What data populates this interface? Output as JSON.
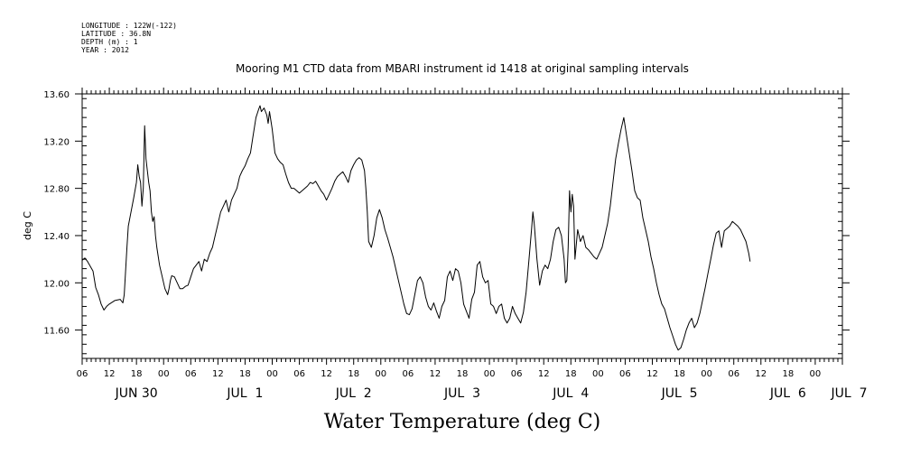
{
  "meta_lines": [
    "LONGITUDE : 122W(-122)",
    "LATITUDE : 36.8N",
    "DEPTH (m) : 1",
    "YEAR : 2012"
  ],
  "chart_data": {
    "type": "line",
    "title": "Mooring M1 CTD data from MBARI instrument id 1418 at original sampling intervals",
    "xlabel": "Water Temperature (deg C)",
    "ylabel": "deg C",
    "ylim": [
      11.36,
      13.6
    ],
    "y_ticks": [
      11.6,
      12.0,
      12.4,
      12.8,
      13.2,
      13.6
    ],
    "y_tick_labels": [
      "11.60",
      "12.00",
      "12.40",
      "12.80",
      "13.20",
      "13.60"
    ],
    "xlim_hours": [
      0,
      168
    ],
    "x_tick_labels": [
      "06",
      "12",
      "18",
      "00",
      "06",
      "12",
      "18",
      "00",
      "06",
      "12",
      "18",
      "00",
      "06",
      "12",
      "18",
      "00",
      "06",
      "12",
      "18",
      "00",
      "06",
      "12",
      "18",
      "00",
      "06",
      "12",
      "18",
      "00"
    ],
    "day_labels": [
      {
        "hour": 12,
        "label": "JUN 30"
      },
      {
        "hour": 36,
        "label": "JUL  1"
      },
      {
        "hour": 60,
        "label": "JUL  2"
      },
      {
        "hour": 84,
        "label": "JUL  3"
      },
      {
        "hour": 108,
        "label": "JUL  4"
      },
      {
        "hour": 132,
        "label": "JUL  5"
      },
      {
        "hour": 156,
        "label": "JUL  6"
      },
      {
        "hour": 169.5,
        "label": "JUL  7"
      }
    ],
    "series": [
      {
        "color": "#000000",
        "points": [
          [
            0.0,
            12.19
          ],
          [
            0.6,
            12.21
          ],
          [
            1.2,
            12.18
          ],
          [
            2.4,
            12.1
          ],
          [
            3.0,
            11.96
          ],
          [
            3.6,
            11.9
          ],
          [
            4.2,
            11.82
          ],
          [
            4.8,
            11.77
          ],
          [
            5.4,
            11.8
          ],
          [
            6.0,
            11.82
          ],
          [
            7.2,
            11.85
          ],
          [
            8.4,
            11.86
          ],
          [
            9.0,
            11.83
          ],
          [
            9.3,
            11.9
          ],
          [
            9.6,
            12.1
          ],
          [
            9.9,
            12.3
          ],
          [
            10.2,
            12.48
          ],
          [
            10.8,
            12.6
          ],
          [
            11.4,
            12.72
          ],
          [
            12.0,
            12.85
          ],
          [
            12.3,
            13.0
          ],
          [
            12.6,
            12.9
          ],
          [
            12.9,
            12.85
          ],
          [
            13.2,
            12.65
          ],
          [
            13.5,
            12.8
          ],
          [
            13.8,
            13.33
          ],
          [
            14.1,
            13.05
          ],
          [
            14.4,
            12.95
          ],
          [
            14.7,
            12.85
          ],
          [
            15.0,
            12.78
          ],
          [
            15.3,
            12.6
          ],
          [
            15.6,
            12.52
          ],
          [
            15.9,
            12.56
          ],
          [
            16.2,
            12.4
          ],
          [
            16.5,
            12.3
          ],
          [
            17.1,
            12.15
          ],
          [
            17.7,
            12.05
          ],
          [
            18.0,
            12.0
          ],
          [
            18.3,
            11.95
          ],
          [
            18.9,
            11.9
          ],
          [
            19.2,
            11.95
          ],
          [
            19.5,
            12.02
          ],
          [
            19.8,
            12.06
          ],
          [
            20.4,
            12.05
          ],
          [
            21.0,
            12.0
          ],
          [
            21.6,
            11.95
          ],
          [
            22.2,
            11.95
          ],
          [
            22.8,
            11.97
          ],
          [
            23.4,
            11.98
          ],
          [
            24.0,
            12.05
          ],
          [
            24.6,
            12.12
          ],
          [
            25.2,
            12.15
          ],
          [
            25.8,
            12.18
          ],
          [
            26.4,
            12.1
          ],
          [
            27.0,
            12.2
          ],
          [
            27.6,
            12.18
          ],
          [
            28.2,
            12.25
          ],
          [
            28.8,
            12.3
          ],
          [
            29.4,
            12.4
          ],
          [
            30.0,
            12.5
          ],
          [
            30.6,
            12.6
          ],
          [
            31.2,
            12.65
          ],
          [
            31.8,
            12.7
          ],
          [
            32.4,
            12.6
          ],
          [
            33.0,
            12.7
          ],
          [
            33.6,
            12.75
          ],
          [
            34.2,
            12.8
          ],
          [
            34.8,
            12.9
          ],
          [
            35.4,
            12.95
          ],
          [
            36.0,
            12.99
          ],
          [
            36.6,
            13.05
          ],
          [
            37.2,
            13.1
          ],
          [
            37.8,
            13.25
          ],
          [
            38.4,
            13.4
          ],
          [
            39.0,
            13.47
          ],
          [
            39.3,
            13.5
          ],
          [
            39.6,
            13.45
          ],
          [
            40.2,
            13.48
          ],
          [
            40.8,
            13.42
          ],
          [
            41.1,
            13.35
          ],
          [
            41.4,
            13.45
          ],
          [
            42.0,
            13.3
          ],
          [
            42.6,
            13.1
          ],
          [
            43.2,
            13.05
          ],
          [
            43.8,
            13.02
          ],
          [
            44.4,
            13.0
          ],
          [
            45.0,
            12.92
          ],
          [
            45.6,
            12.85
          ],
          [
            46.2,
            12.8
          ],
          [
            46.8,
            12.8
          ],
          [
            47.4,
            12.78
          ],
          [
            48.0,
            12.76
          ],
          [
            48.6,
            12.78
          ],
          [
            49.2,
            12.8
          ],
          [
            49.8,
            12.82
          ],
          [
            50.4,
            12.85
          ],
          [
            51.0,
            12.84
          ],
          [
            51.6,
            12.86
          ],
          [
            52.2,
            12.82
          ],
          [
            52.8,
            12.78
          ],
          [
            53.4,
            12.75
          ],
          [
            54.0,
            12.7
          ],
          [
            54.6,
            12.75
          ],
          [
            55.2,
            12.8
          ],
          [
            55.8,
            12.86
          ],
          [
            56.4,
            12.9
          ],
          [
            57.0,
            12.92
          ],
          [
            57.6,
            12.94
          ],
          [
            58.2,
            12.9
          ],
          [
            58.8,
            12.85
          ],
          [
            59.4,
            12.95
          ],
          [
            60.0,
            13.0
          ],
          [
            60.6,
            13.04
          ],
          [
            61.2,
            13.06
          ],
          [
            61.8,
            13.04
          ],
          [
            62.4,
            12.95
          ],
          [
            62.7,
            12.8
          ],
          [
            63.0,
            12.6
          ],
          [
            63.3,
            12.35
          ],
          [
            63.9,
            12.3
          ],
          [
            64.5,
            12.4
          ],
          [
            65.1,
            12.55
          ],
          [
            65.7,
            12.62
          ],
          [
            66.3,
            12.55
          ],
          [
            66.9,
            12.45
          ],
          [
            67.5,
            12.38
          ],
          [
            68.1,
            12.3
          ],
          [
            68.7,
            12.22
          ],
          [
            69.3,
            12.12
          ],
          [
            69.9,
            12.02
          ],
          [
            70.5,
            11.92
          ],
          [
            71.1,
            11.82
          ],
          [
            71.7,
            11.74
          ],
          [
            72.3,
            11.73
          ],
          [
            72.9,
            11.78
          ],
          [
            73.5,
            11.9
          ],
          [
            74.1,
            12.02
          ],
          [
            74.7,
            12.05
          ],
          [
            75.3,
            12.0
          ],
          [
            75.9,
            11.88
          ],
          [
            76.5,
            11.8
          ],
          [
            77.1,
            11.77
          ],
          [
            77.7,
            11.83
          ],
          [
            78.3,
            11.76
          ],
          [
            78.9,
            11.7
          ],
          [
            79.5,
            11.8
          ],
          [
            80.1,
            11.85
          ],
          [
            80.7,
            12.05
          ],
          [
            81.3,
            12.1
          ],
          [
            81.9,
            12.02
          ],
          [
            82.5,
            12.12
          ],
          [
            83.1,
            12.1
          ],
          [
            83.7,
            12.0
          ],
          [
            84.3,
            11.82
          ],
          [
            84.9,
            11.76
          ],
          [
            85.5,
            11.7
          ],
          [
            86.1,
            11.86
          ],
          [
            86.7,
            11.92
          ],
          [
            87.3,
            12.15
          ],
          [
            87.9,
            12.18
          ],
          [
            88.5,
            12.05
          ],
          [
            89.1,
            12.0
          ],
          [
            89.7,
            12.02
          ],
          [
            90.3,
            11.82
          ],
          [
            90.9,
            11.8
          ],
          [
            91.5,
            11.74
          ],
          [
            92.1,
            11.8
          ],
          [
            92.7,
            11.82
          ],
          [
            93.3,
            11.7
          ],
          [
            93.9,
            11.66
          ],
          [
            94.5,
            11.7
          ],
          [
            95.1,
            11.8
          ],
          [
            95.7,
            11.74
          ],
          [
            96.3,
            11.7
          ],
          [
            96.9,
            11.66
          ],
          [
            97.5,
            11.75
          ],
          [
            98.1,
            11.92
          ],
          [
            98.7,
            12.18
          ],
          [
            99.3,
            12.45
          ],
          [
            99.6,
            12.6
          ],
          [
            99.9,
            12.5
          ],
          [
            100.5,
            12.2
          ],
          [
            101.1,
            11.98
          ],
          [
            101.7,
            12.1
          ],
          [
            102.3,
            12.15
          ],
          [
            102.9,
            12.12
          ],
          [
            103.5,
            12.2
          ],
          [
            104.1,
            12.35
          ],
          [
            104.7,
            12.45
          ],
          [
            105.3,
            12.47
          ],
          [
            105.9,
            12.4
          ],
          [
            106.5,
            12.2
          ],
          [
            106.8,
            12.0
          ],
          [
            107.1,
            12.02
          ],
          [
            107.4,
            12.3
          ],
          [
            107.7,
            12.78
          ],
          [
            108.0,
            12.6
          ],
          [
            108.3,
            12.75
          ],
          [
            108.6,
            12.65
          ],
          [
            108.9,
            12.2
          ],
          [
            109.5,
            12.45
          ],
          [
            110.1,
            12.35
          ],
          [
            110.7,
            12.4
          ],
          [
            111.3,
            12.3
          ],
          [
            111.9,
            12.28
          ],
          [
            112.5,
            12.25
          ],
          [
            113.1,
            12.22
          ],
          [
            113.7,
            12.2
          ],
          [
            114.3,
            12.25
          ],
          [
            114.9,
            12.3
          ],
          [
            115.5,
            12.4
          ],
          [
            116.1,
            12.5
          ],
          [
            116.7,
            12.65
          ],
          [
            117.3,
            12.85
          ],
          [
            117.9,
            13.05
          ],
          [
            118.5,
            13.18
          ],
          [
            119.1,
            13.3
          ],
          [
            119.7,
            13.4
          ],
          [
            120.3,
            13.25
          ],
          [
            120.9,
            13.1
          ],
          [
            121.5,
            12.95
          ],
          [
            122.1,
            12.78
          ],
          [
            122.7,
            12.72
          ],
          [
            123.3,
            12.7
          ],
          [
            123.9,
            12.55
          ],
          [
            124.5,
            12.45
          ],
          [
            125.1,
            12.35
          ],
          [
            125.7,
            12.22
          ],
          [
            126.3,
            12.12
          ],
          [
            126.9,
            12.0
          ],
          [
            127.5,
            11.9
          ],
          [
            128.1,
            11.82
          ],
          [
            128.7,
            11.78
          ],
          [
            129.3,
            11.7
          ],
          [
            129.9,
            11.62
          ],
          [
            130.5,
            11.55
          ],
          [
            131.1,
            11.48
          ],
          [
            131.7,
            11.43
          ],
          [
            132.3,
            11.45
          ],
          [
            132.9,
            11.52
          ],
          [
            133.5,
            11.6
          ],
          [
            134.1,
            11.66
          ],
          [
            134.7,
            11.7
          ],
          [
            135.3,
            11.62
          ],
          [
            135.9,
            11.66
          ],
          [
            136.5,
            11.74
          ],
          [
            137.1,
            11.85
          ],
          [
            137.7,
            11.96
          ],
          [
            138.3,
            12.08
          ],
          [
            138.9,
            12.2
          ],
          [
            139.5,
            12.32
          ],
          [
            140.1,
            12.42
          ],
          [
            140.7,
            12.44
          ],
          [
            141.3,
            12.3
          ],
          [
            141.9,
            12.44
          ],
          [
            142.5,
            12.46
          ],
          [
            143.1,
            12.48
          ],
          [
            143.7,
            12.52
          ],
          [
            144.3,
            12.5
          ],
          [
            144.9,
            12.48
          ],
          [
            145.5,
            12.45
          ],
          [
            146.1,
            12.4
          ],
          [
            146.7,
            12.35
          ],
          [
            147.3,
            12.25
          ],
          [
            147.6,
            12.18
          ]
        ]
      }
    ]
  }
}
